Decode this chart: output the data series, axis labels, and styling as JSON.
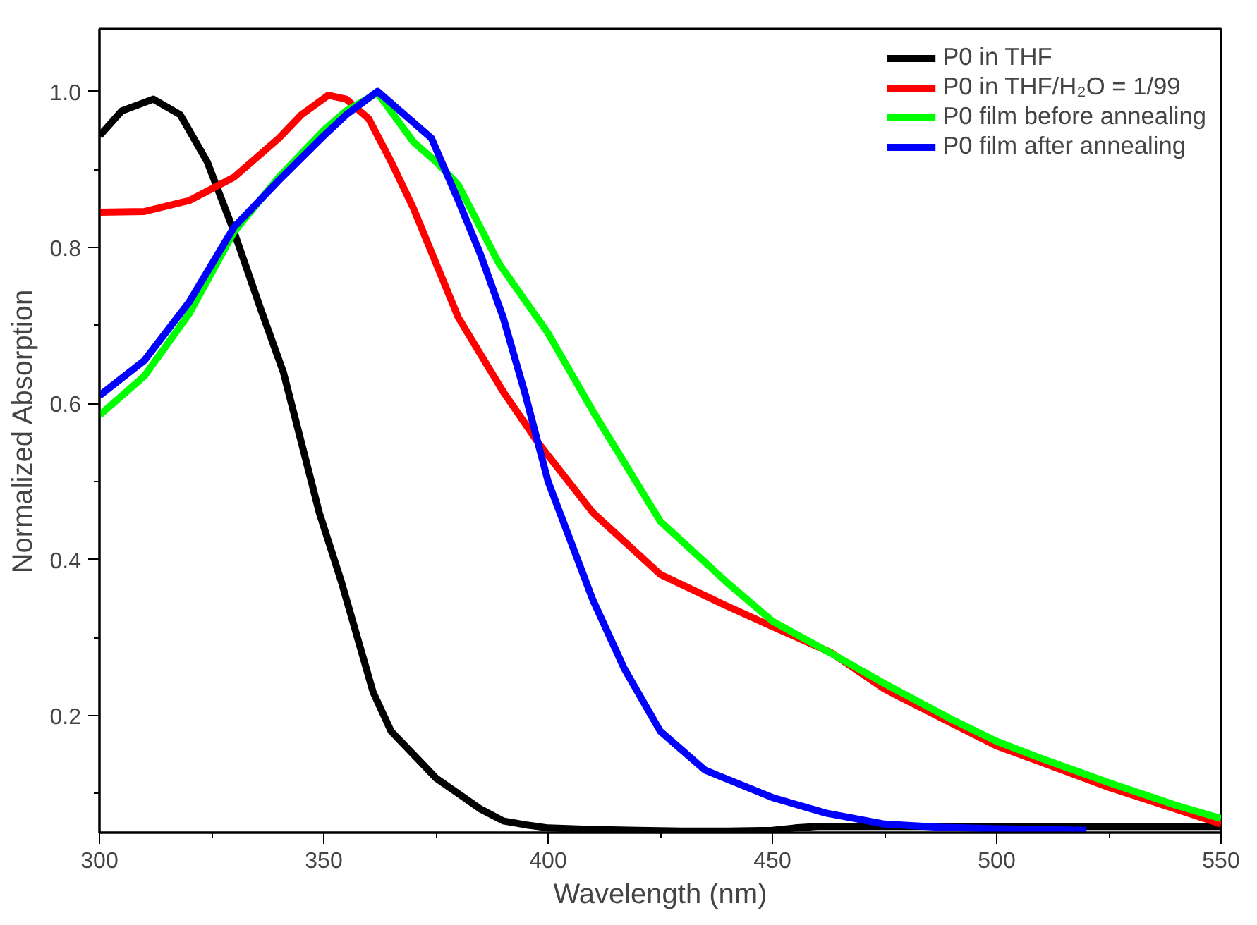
{
  "chart_data": {
    "type": "line",
    "xlabel": "Wavelength (nm)",
    "ylabel": "Normalized Absorption",
    "xlim": [
      300,
      550
    ],
    "ylim": [
      0.05,
      1.08
    ],
    "xticks": [
      300,
      350,
      400,
      450,
      500,
      550
    ],
    "yticks": [
      0.2,
      0.4,
      0.6,
      0.8,
      {
        "value": 1.0,
        "label": "1.0"
      }
    ],
    "grid": false,
    "legend": "top right",
    "marker": "none",
    "line_style": "solid",
    "series": [
      {
        "name": "P0 in THF",
        "color": "#000000",
        "x": [
          300,
          305,
          312,
          318,
          324,
          330,
          336,
          341,
          345,
          349,
          354,
          358,
          361,
          365,
          370,
          375,
          380,
          385,
          390,
          395,
          400,
          410,
          420,
          430,
          440,
          450,
          455,
          460,
          470,
          480,
          490,
          500,
          510,
          520,
          530,
          540,
          550
        ],
        "values": [
          0.943,
          0.975,
          0.99,
          0.97,
          0.91,
          0.82,
          0.72,
          0.64,
          0.55,
          0.46,
          0.37,
          0.29,
          0.23,
          0.18,
          0.15,
          0.12,
          0.1,
          0.08,
          0.065,
          0.06,
          0.056,
          0.054,
          0.053,
          0.052,
          0.052,
          0.053,
          0.056,
          0.058,
          0.058,
          0.058,
          0.058,
          0.058,
          0.058,
          0.058,
          0.058,
          0.058,
          0.058
        ]
      },
      {
        "name": "P0 in THF/H₂O = 1/99",
        "color": "#ff0000",
        "x": [
          300,
          310,
          320,
          330,
          340,
          345,
          351,
          355,
          360,
          365,
          370,
          375,
          380,
          390,
          398,
          410,
          425,
          440,
          450,
          463,
          475,
          490,
          500,
          510,
          525,
          540,
          550
        ],
        "values": [
          0.845,
          0.846,
          0.86,
          0.89,
          0.94,
          0.97,
          0.995,
          0.99,
          0.965,
          0.91,
          0.85,
          0.78,
          0.71,
          0.615,
          0.548,
          0.46,
          0.381,
          0.34,
          0.314,
          0.281,
          0.234,
          0.19,
          0.161,
          0.14,
          0.108,
          0.08,
          0.061
        ]
      },
      {
        "name": "P0 film before annealing",
        "color": "#00ff00",
        "x": [
          300,
          310,
          320,
          330,
          340,
          350,
          355,
          362,
          370,
          375,
          380,
          389,
          400,
          410,
          425,
          440,
          450,
          463,
          475,
          490,
          500,
          510,
          525,
          540,
          550
        ],
        "values": [
          0.585,
          0.635,
          0.715,
          0.82,
          0.89,
          0.95,
          0.975,
          0.998,
          0.935,
          0.91,
          0.88,
          0.78,
          0.69,
          0.59,
          0.449,
          0.37,
          0.321,
          0.28,
          0.241,
          0.195,
          0.167,
          0.145,
          0.114,
          0.085,
          0.068
        ]
      },
      {
        "name": "P0 film after annealing",
        "color": "#0000ff",
        "x": [
          300,
          310,
          320,
          330,
          340,
          350,
          355,
          362,
          368,
          374,
          380,
          385,
          390,
          395,
          400,
          410,
          417,
          425,
          435,
          450,
          462,
          475,
          487,
          500,
          510,
          520
        ],
        "values": [
          0.61,
          0.655,
          0.73,
          0.826,
          0.886,
          0.943,
          0.97,
          1.0,
          0.97,
          0.94,
          0.86,
          0.79,
          0.71,
          0.61,
          0.5,
          0.348,
          0.26,
          0.18,
          0.13,
          0.095,
          0.075,
          0.061,
          0.057,
          0.055,
          0.054,
          0.053
        ]
      }
    ]
  }
}
